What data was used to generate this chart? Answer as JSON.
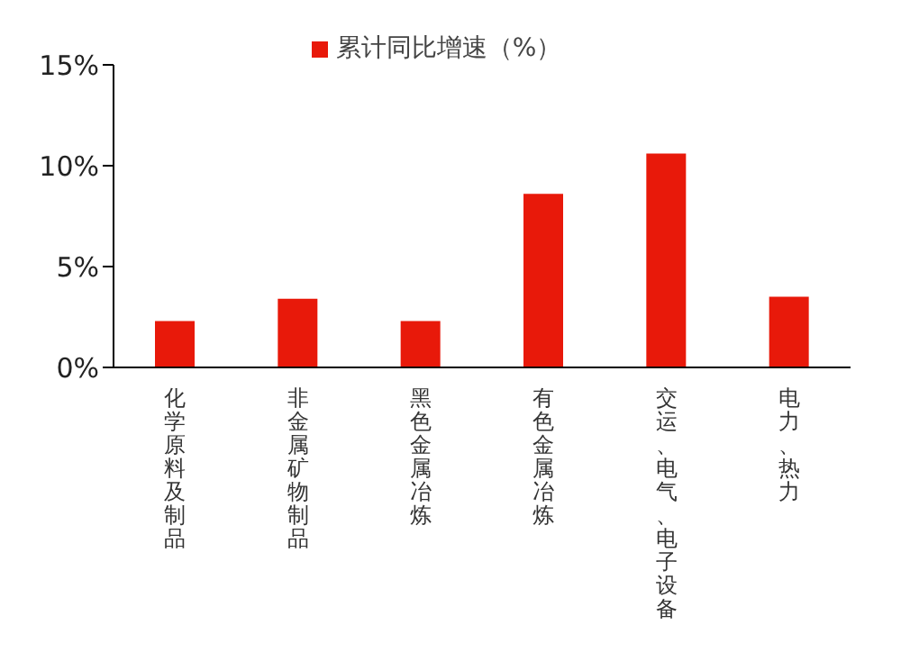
{
  "chart_data": {
    "type": "bar",
    "categories": [
      "化学原料及制品",
      "非金属矿物制品",
      "黑色金属冶炼",
      "有色金属冶炼",
      "交运、电气、电子设备",
      "电力、热力"
    ],
    "series": [
      {
        "name": "累计同比增速（%）",
        "color": "#e8190a",
        "values": [
          2.3,
          3.4,
          2.3,
          8.6,
          10.6,
          3.5
        ]
      }
    ],
    "ylim": [
      0,
      15
    ],
    "yticks": [
      {
        "value": 0,
        "label": "0%"
      },
      {
        "value": 5,
        "label": "5%"
      },
      {
        "value": 10,
        "label": "10%"
      },
      {
        "value": 15,
        "label": "15%"
      }
    ],
    "grid": false,
    "legend": "top"
  }
}
